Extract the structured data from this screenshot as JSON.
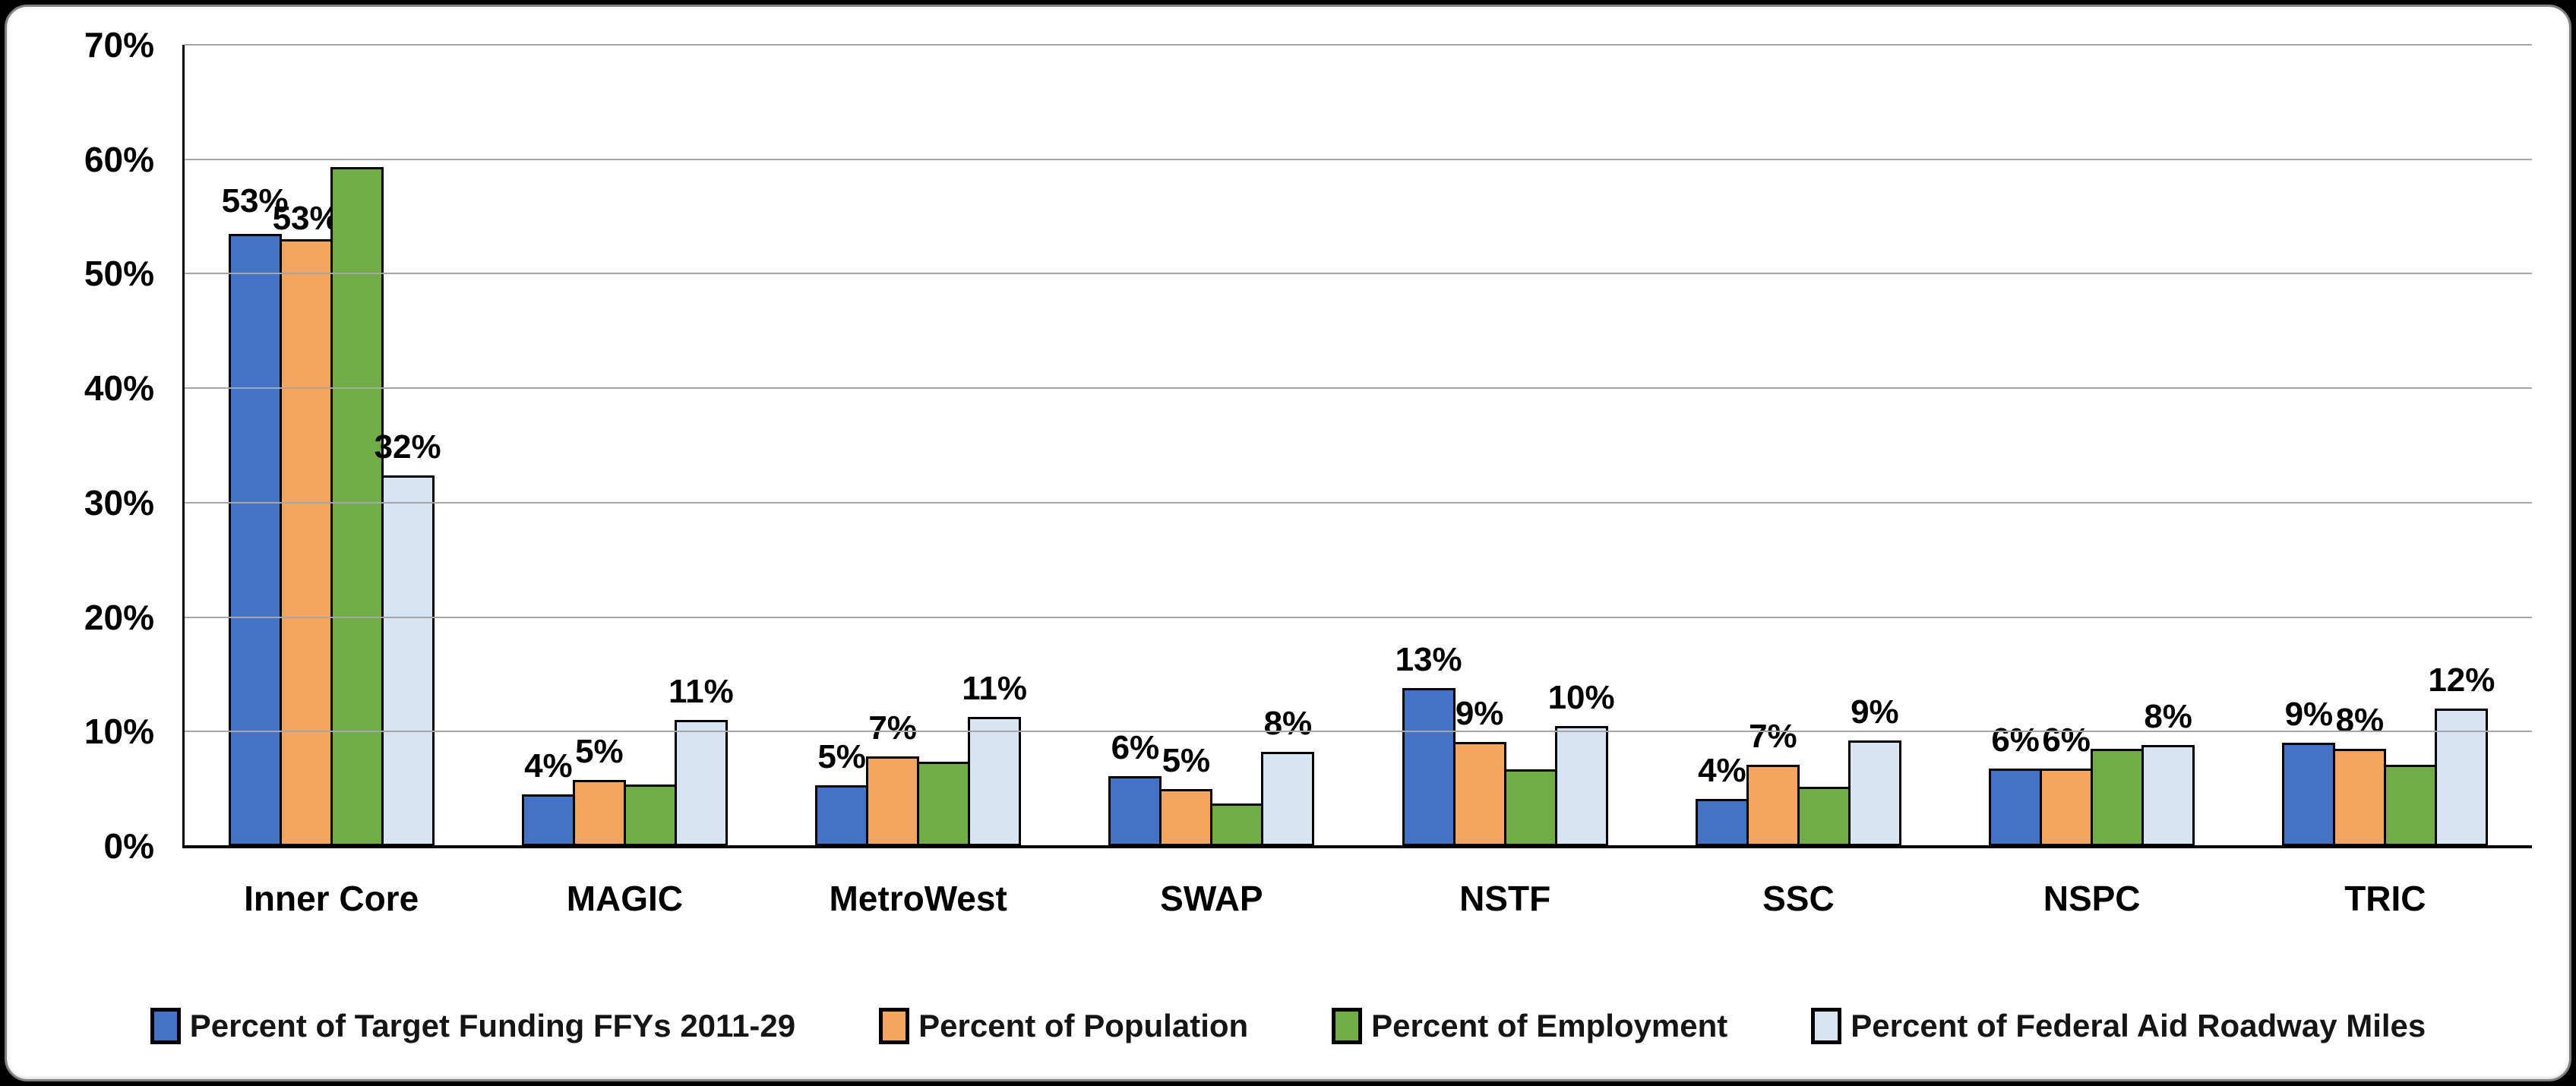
{
  "chart_data": {
    "type": "bar",
    "title": "",
    "categories": [
      "Inner Core",
      "MAGIC",
      "MetroWest",
      "SWAP",
      "NSTF",
      "SSC",
      "NSPC",
      "TRIC"
    ],
    "series": [
      {
        "name": "Percent of Target Funding FFYs 2011-29",
        "color": "#4472C4",
        "values": [
          53.1,
          4.1,
          4.9,
          5.7,
          13.4,
          3.7,
          6.4,
          8.6
        ],
        "labels": [
          "53%",
          "4%",
          "5%",
          "6%",
          "13%",
          "4%",
          "6%",
          "9%"
        ],
        "label_dy": [
          -6,
          0,
          0,
          0,
          0,
          0,
          0,
          0
        ]
      },
      {
        "name": "Percent of Population",
        "color": "#F4A55F",
        "values": [
          52.6,
          5.4,
          7.4,
          4.6,
          8.7,
          6.7,
          6.4,
          8.1
        ],
        "labels": [
          "53%",
          "5%",
          "7%",
          "5%",
          "9%",
          "7%",
          "6%",
          "8%"
        ],
        "label_dy": [
          10,
          0,
          0,
          0,
          0,
          0,
          0,
          0
        ]
      },
      {
        "name": "Percent of Employment",
        "color": "#70AD47",
        "values": [
          58.9,
          5.0,
          7.0,
          3.3,
          6.3,
          4.8,
          8.1,
          6.7
        ],
        "labels": [
          "",
          "",
          "",
          "",
          "",
          "",
          "",
          ""
        ],
        "label_dy": [
          0,
          0,
          0,
          0,
          0,
          0,
          0,
          0
        ]
      },
      {
        "name": "Percent of Federal Aid Roadway Miles",
        "color": "#D7E5F3",
        "values": [
          32.0,
          10.6,
          10.9,
          7.8,
          10.1,
          8.8,
          8.4,
          11.6
        ],
        "labels": [
          "32%",
          "11%",
          "11%",
          "8%",
          "10%",
          "9%",
          "8%",
          "12%"
        ],
        "label_dy": [
          0,
          0,
          0,
          0,
          0,
          0,
          0,
          0
        ]
      }
    ],
    "ylim": [
      0,
      70
    ],
    "ytick_labels": [
      "0%",
      "10%",
      "20%",
      "30%",
      "40%",
      "50%",
      "60%",
      "70%"
    ],
    "xlabel": "",
    "ylabel": "",
    "grid": true,
    "gridline_color": "#A6A6A6",
    "axis_color": "#000000",
    "bar_border_color": "#000000",
    "background_color": "#FFFFFF",
    "legend_position": "bottom"
  }
}
